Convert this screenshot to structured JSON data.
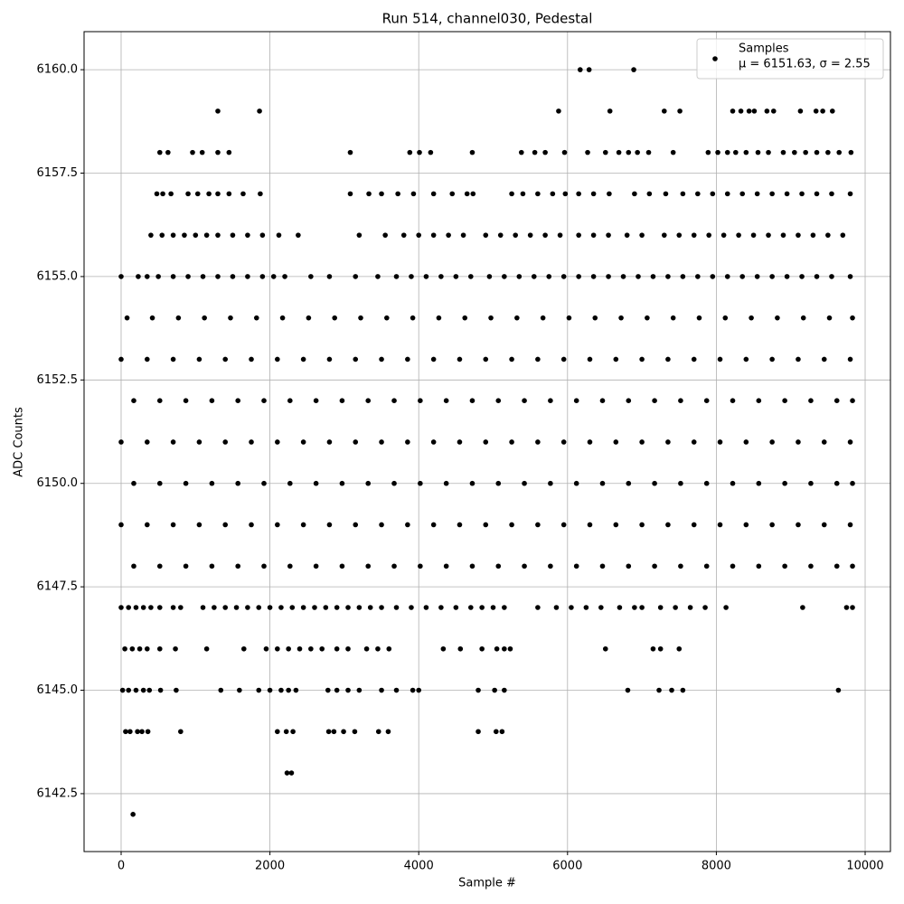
{
  "chart_data": {
    "type": "scatter",
    "title": "Run 514, channel030, Pedestal",
    "x_label": "Sample #",
    "y_label": "ADC Counts",
    "series": [
      {
        "name": "Samples",
        "color": "#000000",
        "x": [
          6170,
          6290,
          6890,
          1300,
          1860,
          5880,
          6570,
          7300,
          7510,
          8220,
          8330,
          8440,
          8510,
          8680,
          8770,
          9130,
          9340,
          9430,
          9560,
          520,
          630,
          960,
          1090,
          1300,
          1450,
          3080,
          3880,
          4010,
          4160,
          4720,
          5380,
          5560,
          5700,
          5960,
          6270,
          6510,
          6690,
          6820,
          6940,
          7090,
          7420,
          7890,
          8020,
          8150,
          8260,
          8400,
          8560,
          8700,
          8900,
          9050,
          9200,
          9350,
          9500,
          9650,
          9810,
          480,
          560,
          670,
          900,
          1030,
          1180,
          1300,
          1450,
          1640,
          1870,
          3080,
          3330,
          3500,
          3720,
          3930,
          4200,
          4450,
          4650,
          4730,
          5250,
          5400,
          5600,
          5800,
          5970,
          6150,
          6350,
          6560,
          6900,
          7100,
          7320,
          7550,
          7750,
          7950,
          8150,
          8350,
          8550,
          8750,
          8950,
          9150,
          9350,
          9550,
          9800,
          400,
          550,
          700,
          850,
          1000,
          1150,
          1300,
          1500,
          1700,
          1900,
          2120,
          2380,
          3200,
          3550,
          3800,
          4000,
          4200,
          4400,
          4600,
          4900,
          5100,
          5300,
          5500,
          5700,
          5900,
          6150,
          6350,
          6550,
          6800,
          7000,
          7300,
          7500,
          7700,
          7900,
          8100,
          8300,
          8500,
          8700,
          8900,
          9100,
          9300,
          9500,
          9700,
          0,
          230,
          350,
          500,
          700,
          900,
          1100,
          1300,
          1500,
          1700,
          1900,
          2050,
          2200,
          2550,
          2800,
          3150,
          3450,
          3700,
          3900,
          4100,
          4300,
          4500,
          4700,
          4950,
          5150,
          5350,
          5550,
          5750,
          5950,
          6150,
          6350,
          6550,
          6750,
          6950,
          7150,
          7350,
          7550,
          7750,
          7950,
          8150,
          8350,
          8550,
          8750,
          8950,
          9150,
          9350,
          9550,
          9800,
          80,
          420,
          770,
          1120,
          1470,
          1820,
          2170,
          2520,
          2870,
          3220,
          3570,
          3920,
          4270,
          4620,
          4970,
          5320,
          5670,
          6020,
          6370,
          6720,
          7070,
          7420,
          7770,
          8120,
          8470,
          8820,
          9170,
          9520,
          9830,
          0,
          350,
          700,
          1050,
          1400,
          1750,
          2100,
          2450,
          2800,
          3150,
          3500,
          3850,
          4200,
          4550,
          4900,
          5250,
          5600,
          5950,
          6300,
          6650,
          7000,
          7350,
          7700,
          8050,
          8400,
          8750,
          9100,
          9450,
          9800,
          170,
          520,
          870,
          1220,
          1570,
          1920,
          2270,
          2620,
          2970,
          3320,
          3670,
          4020,
          4370,
          4720,
          5070,
          5420,
          5770,
          6120,
          6470,
          6820,
          7170,
          7520,
          7870,
          8220,
          8570,
          8920,
          9270,
          9620,
          9830,
          0,
          350,
          700,
          1050,
          1400,
          1750,
          2100,
          2450,
          2800,
          3150,
          3500,
          3850,
          4200,
          4550,
          4900,
          5250,
          5600,
          5950,
          6300,
          6650,
          7000,
          7350,
          7700,
          8050,
          8400,
          8750,
          9100,
          9450,
          9800,
          170,
          520,
          870,
          1220,
          1570,
          1920,
          2270,
          2620,
          2970,
          3320,
          3670,
          4020,
          4370,
          4720,
          5070,
          5420,
          5770,
          6120,
          6470,
          6820,
          7170,
          7520,
          7870,
          8220,
          8570,
          8920,
          9270,
          9620,
          9830,
          0,
          350,
          700,
          1050,
          1400,
          1750,
          2100,
          2450,
          2800,
          3150,
          3500,
          3850,
          4200,
          4550,
          4900,
          5250,
          5600,
          5950,
          6300,
          6650,
          7000,
          7350,
          7700,
          8050,
          8400,
          8750,
          9100,
          9450,
          9800,
          170,
          520,
          870,
          1220,
          1570,
          1920,
          2270,
          2620,
          2970,
          3320,
          3670,
          4020,
          4370,
          4720,
          5070,
          5420,
          5770,
          6120,
          6470,
          6820,
          7170,
          7520,
          7870,
          8220,
          8570,
          8920,
          9270,
          9620,
          9830,
          0,
          100,
          200,
          300,
          400,
          520,
          700,
          800,
          1100,
          1250,
          1400,
          1550,
          1700,
          1850,
          2000,
          2150,
          2300,
          2450,
          2600,
          2750,
          2900,
          3050,
          3200,
          3350,
          3500,
          3700,
          3900,
          4100,
          4300,
          4500,
          4700,
          4850,
          5000,
          5150,
          5600,
          5850,
          6050,
          6250,
          6450,
          6700,
          6900,
          7000,
          7250,
          7450,
          7650,
          7850,
          8130,
          9160,
          9750,
          9830,
          50,
          150,
          250,
          350,
          520,
          730,
          1150,
          1650,
          1950,
          2100,
          2250,
          2400,
          2550,
          2700,
          2900,
          3050,
          3300,
          3450,
          3600,
          4330,
          4560,
          4850,
          5050,
          5150,
          5230,
          6510,
          7150,
          7250,
          7500,
          20,
          100,
          200,
          300,
          380,
          530,
          740,
          1340,
          1590,
          1850,
          2000,
          2150,
          2250,
          2350,
          2780,
          2900,
          3050,
          3200,
          3500,
          3700,
          3920,
          4000,
          4800,
          5020,
          5150,
          6810,
          7230,
          7400,
          7550,
          9640,
          60,
          120,
          220,
          280,
          360,
          800,
          2100,
          2220,
          2310,
          2790,
          2860,
          2990,
          3140,
          3460,
          3590,
          4800,
          5040,
          5120,
          2230,
          2290,
          160
        ],
        "values": [
          6160,
          6160,
          6160,
          6159,
          6159,
          6159,
          6159,
          6159,
          6159,
          6159,
          6159,
          6159,
          6159,
          6159,
          6159,
          6159,
          6159,
          6159,
          6159,
          6158,
          6158,
          6158,
          6158,
          6158,
          6158,
          6158,
          6158,
          6158,
          6158,
          6158,
          6158,
          6158,
          6158,
          6158,
          6158,
          6158,
          6158,
          6158,
          6158,
          6158,
          6158,
          6158,
          6158,
          6158,
          6158,
          6158,
          6158,
          6158,
          6158,
          6158,
          6158,
          6158,
          6158,
          6158,
          6158,
          6157,
          6157,
          6157,
          6157,
          6157,
          6157,
          6157,
          6157,
          6157,
          6157,
          6157,
          6157,
          6157,
          6157,
          6157,
          6157,
          6157,
          6157,
          6157,
          6157,
          6157,
          6157,
          6157,
          6157,
          6157,
          6157,
          6157,
          6157,
          6157,
          6157,
          6157,
          6157,
          6157,
          6157,
          6157,
          6157,
          6157,
          6157,
          6157,
          6157,
          6157,
          6157,
          6156,
          6156,
          6156,
          6156,
          6156,
          6156,
          6156,
          6156,
          6156,
          6156,
          6156,
          6156,
          6156,
          6156,
          6156,
          6156,
          6156,
          6156,
          6156,
          6156,
          6156,
          6156,
          6156,
          6156,
          6156,
          6156,
          6156,
          6156,
          6156,
          6156,
          6156,
          6156,
          6156,
          6156,
          6156,
          6156,
          6156,
          6156,
          6156,
          6156,
          6156,
          6156,
          6156,
          6155,
          6155,
          6155,
          6155,
          6155,
          6155,
          6155,
          6155,
          6155,
          6155,
          6155,
          6155,
          6155,
          6155,
          6155,
          6155,
          6155,
          6155,
          6155,
          6155,
          6155,
          6155,
          6155,
          6155,
          6155,
          6155,
          6155,
          6155,
          6155,
          6155,
          6155,
          6155,
          6155,
          6155,
          6155,
          6155,
          6155,
          6155,
          6155,
          6155,
          6155,
          6155,
          6155,
          6155,
          6155,
          6155,
          6155,
          6155,
          6154,
          6154,
          6154,
          6154,
          6154,
          6154,
          6154,
          6154,
          6154,
          6154,
          6154,
          6154,
          6154,
          6154,
          6154,
          6154,
          6154,
          6154,
          6154,
          6154,
          6154,
          6154,
          6154,
          6154,
          6154,
          6154,
          6154,
          6154,
          6154,
          6153,
          6153,
          6153,
          6153,
          6153,
          6153,
          6153,
          6153,
          6153,
          6153,
          6153,
          6153,
          6153,
          6153,
          6153,
          6153,
          6153,
          6153,
          6153,
          6153,
          6153,
          6153,
          6153,
          6153,
          6153,
          6153,
          6153,
          6153,
          6153,
          6152,
          6152,
          6152,
          6152,
          6152,
          6152,
          6152,
          6152,
          6152,
          6152,
          6152,
          6152,
          6152,
          6152,
          6152,
          6152,
          6152,
          6152,
          6152,
          6152,
          6152,
          6152,
          6152,
          6152,
          6152,
          6152,
          6152,
          6152,
          6152,
          6151,
          6151,
          6151,
          6151,
          6151,
          6151,
          6151,
          6151,
          6151,
          6151,
          6151,
          6151,
          6151,
          6151,
          6151,
          6151,
          6151,
          6151,
          6151,
          6151,
          6151,
          6151,
          6151,
          6151,
          6151,
          6151,
          6151,
          6151,
          6151,
          6150,
          6150,
          6150,
          6150,
          6150,
          6150,
          6150,
          6150,
          6150,
          6150,
          6150,
          6150,
          6150,
          6150,
          6150,
          6150,
          6150,
          6150,
          6150,
          6150,
          6150,
          6150,
          6150,
          6150,
          6150,
          6150,
          6150,
          6150,
          6150,
          6149,
          6149,
          6149,
          6149,
          6149,
          6149,
          6149,
          6149,
          6149,
          6149,
          6149,
          6149,
          6149,
          6149,
          6149,
          6149,
          6149,
          6149,
          6149,
          6149,
          6149,
          6149,
          6149,
          6149,
          6149,
          6149,
          6149,
          6149,
          6149,
          6148,
          6148,
          6148,
          6148,
          6148,
          6148,
          6148,
          6148,
          6148,
          6148,
          6148,
          6148,
          6148,
          6148,
          6148,
          6148,
          6148,
          6148,
          6148,
          6148,
          6148,
          6148,
          6148,
          6148,
          6148,
          6148,
          6148,
          6148,
          6148,
          6147,
          6147,
          6147,
          6147,
          6147,
          6147,
          6147,
          6147,
          6147,
          6147,
          6147,
          6147,
          6147,
          6147,
          6147,
          6147,
          6147,
          6147,
          6147,
          6147,
          6147,
          6147,
          6147,
          6147,
          6147,
          6147,
          6147,
          6147,
          6147,
          6147,
          6147,
          6147,
          6147,
          6147,
          6147,
          6147,
          6147,
          6147,
          6147,
          6147,
          6147,
          6147,
          6147,
          6147,
          6147,
          6147,
          6147,
          6147,
          6147,
          6147,
          6146,
          6146,
          6146,
          6146,
          6146,
          6146,
          6146,
          6146,
          6146,
          6146,
          6146,
          6146,
          6146,
          6146,
          6146,
          6146,
          6146,
          6146,
          6146,
          6146,
          6146,
          6146,
          6146,
          6146,
          6146,
          6146,
          6146,
          6146,
          6146,
          6145,
          6145,
          6145,
          6145,
          6145,
          6145,
          6145,
          6145,
          6145,
          6145,
          6145,
          6145,
          6145,
          6145,
          6145,
          6145,
          6145,
          6145,
          6145,
          6145,
          6145,
          6145,
          6145,
          6145,
          6145,
          6145,
          6145,
          6145,
          6145,
          6145,
          6144,
          6144,
          6144,
          6144,
          6144,
          6144,
          6144,
          6144,
          6144,
          6144,
          6144,
          6144,
          6144,
          6144,
          6144,
          6144,
          6144,
          6144,
          6143,
          6143,
          6142
        ]
      }
    ],
    "legend_note": "μ = 6151.63, σ = 2.55",
    "legend": "upper right",
    "grid": true,
    "xlim": [
      -498,
      10340
    ],
    "xticks": [
      0,
      2000,
      4000,
      6000,
      8000,
      10000
    ],
    "ylim": [
      6141.1,
      6160.92
    ],
    "yticks": [
      6142.5,
      {
        "value": 6145,
        "label": "6145.0"
      },
      6147.5,
      {
        "value": 6150,
        "label": "6150.0"
      },
      6152.5,
      {
        "value": 6155,
        "label": "6155.0"
      },
      6157.5,
      {
        "value": 6160,
        "label": "6160.0"
      }
    ]
  }
}
